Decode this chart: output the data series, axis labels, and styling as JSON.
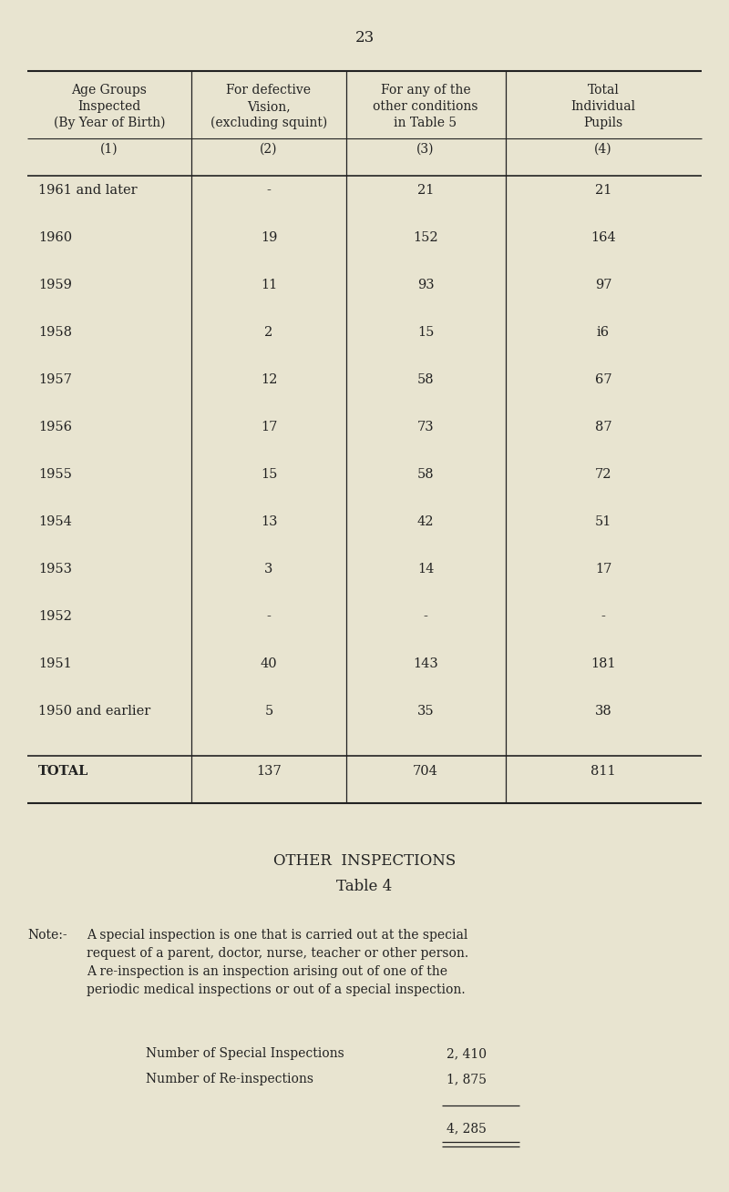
{
  "page_number": "23",
  "bg_color": "#e8e4d0",
  "text_color": "#222222",
  "header_texts": [
    [
      "Age Groups",
      "Inspected",
      "(By Year of Birth)"
    ],
    [
      "For defective",
      "Vision,",
      "(excluding squint)"
    ],
    [
      "For any of the",
      "other conditions",
      "in Table 5"
    ],
    [
      "Total",
      "Individual",
      "Pupils"
    ]
  ],
  "col_labels": [
    "(1)",
    "(2)",
    "(3)",
    "(4)"
  ],
  "rows": [
    [
      "1961 and later",
      "-",
      "21",
      "21"
    ],
    [
      "1960",
      "19",
      "152",
      "164"
    ],
    [
      "1959",
      "11",
      "93",
      "97"
    ],
    [
      "1958",
      "2",
      "15",
      "i6"
    ],
    [
      "1957",
      "12",
      "58",
      "67"
    ],
    [
      "1956",
      "17",
      "73",
      "87"
    ],
    [
      "1955",
      "15",
      "58",
      "72"
    ],
    [
      "1954",
      "13",
      "42",
      "51"
    ],
    [
      "1953",
      "3",
      "14",
      "17"
    ],
    [
      "1952",
      "-",
      "-",
      "-"
    ],
    [
      "1951",
      "40",
      "143",
      "181"
    ],
    [
      "1950 and earlier",
      "5",
      "35",
      "38"
    ]
  ],
  "total_row": [
    "TOTAL",
    "137",
    "704",
    "811"
  ],
  "section_title": "OTHER  INSPECTIONS",
  "section_subtitle": "Table 4",
  "note_label": "Note:-",
  "note_lines": [
    "A special inspection is one that is carried out at the special",
    "request of a parent, doctor, nurse, teacher or other person.",
    "A re-inspection is an inspection arising out of one of the",
    "periodic medical inspections or out of a special inspection."
  ],
  "stat_labels": [
    "Number of Special Inspections",
    "Number of Re-inspections"
  ],
  "stat_values": [
    "2, 410",
    "1, 875"
  ],
  "total_stat": "4, 285"
}
